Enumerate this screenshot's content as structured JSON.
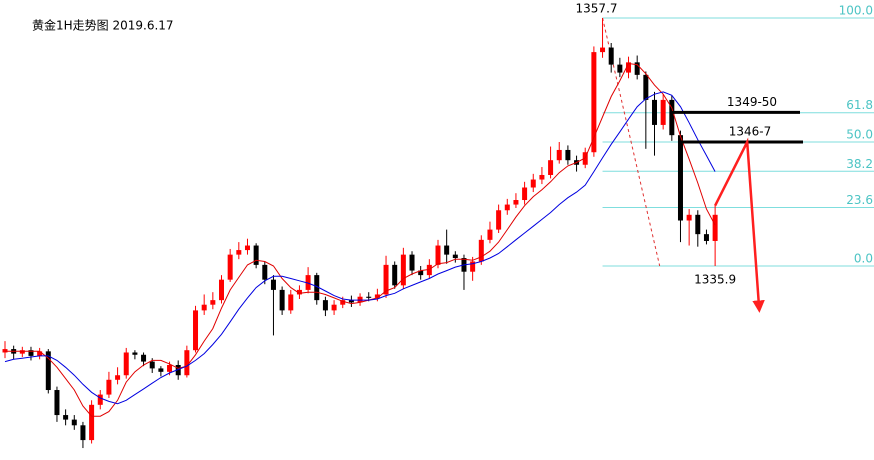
{
  "chart_data": {
    "type": "candlestick",
    "title": "黄金1H走势图  2019.6.17",
    "ylim": [
      1318.85,
      1359.28
    ],
    "up_color": "#ff0000",
    "down_color": "#000000",
    "open": [
      1328.3,
      1328.6,
      1328.2,
      1328.5,
      1328.0,
      1328.4,
      1325.0,
      1322.8,
      1322.4,
      1321.9,
      1320.6,
      1323.7,
      1324.6,
      1325.9,
      1326.3,
      1328.3,
      1328.1,
      1327.5,
      1326.9,
      1326.6,
      1327.2,
      1326.3,
      1328.5,
      1332.0,
      1332.5,
      1332.9,
      1334.7,
      1336.9,
      1337.3,
      1337.7,
      1336.0,
      1334.7,
      1333.8,
      1332.0,
      1333.4,
      1333.8,
      1335.1,
      1332.9,
      1332.0,
      1332.5,
      1332.9,
      1332.7,
      1333.2,
      1333.1,
      1333.4,
      1336.0,
      1334.2,
      1336.9,
      1335.5,
      1335.1,
      1336.0,
      1337.7,
      1336.9,
      1336.6,
      1335.4,
      1336.3,
      1338.2,
      1339.1,
      1340.8,
      1341.3,
      1341.7,
      1342.8,
      1343.5,
      1343.9,
      1345.2,
      1346.1,
      1345.2,
      1344.8,
      1345.9,
      1354.7,
      1355.1,
      1353.6,
      1352.9,
      1353.8,
      1352.7,
      1350.5,
      1348.3,
      1350.5,
      1347.4,
      1339.9,
      1340.4,
      1338.7,
      1338.1
    ],
    "high": [
      1329.3,
      1328.9,
      1328.8,
      1328.8,
      1328.7,
      1328.6,
      1325.3,
      1323.3,
      1322.8,
      1322.2,
      1324.1,
      1325.0,
      1326.6,
      1327.0,
      1328.7,
      1328.5,
      1328.3,
      1327.8,
      1327.1,
      1327.5,
      1327.6,
      1328.9,
      1332.4,
      1333.4,
      1333.6,
      1335.1,
      1337.4,
      1338.0,
      1338.3,
      1337.9,
      1336.3,
      1335.1,
      1334.1,
      1333.8,
      1334.2,
      1335.8,
      1335.3,
      1333.2,
      1332.9,
      1333.2,
      1333.3,
      1333.5,
      1333.6,
      1333.9,
      1336.8,
      1336.3,
      1337.5,
      1337.2,
      1335.9,
      1336.5,
      1338.2,
      1339.1,
      1337.2,
      1336.9,
      1336.7,
      1338.6,
      1339.8,
      1341.3,
      1341.8,
      1342.3,
      1343.3,
      1344.0,
      1344.6,
      1346.4,
      1346.8,
      1346.5,
      1345.6,
      1346.3,
      1355.2,
      1357.7,
      1355.5,
      1354.2,
      1354.3,
      1354.4,
      1353.0,
      1351.2,
      1351.0,
      1350.9,
      1347.8,
      1340.9,
      1340.8,
      1339.1,
      1341.2
    ],
    "low": [
      1327.8,
      1327.7,
      1327.9,
      1327.6,
      1327.7,
      1324.7,
      1322.2,
      1321.9,
      1321.5,
      1319.9,
      1320.3,
      1323.3,
      1324.3,
      1325.5,
      1326.0,
      1327.7,
      1327.1,
      1326.5,
      1326.2,
      1326.3,
      1325.9,
      1326.1,
      1328.3,
      1331.6,
      1332.1,
      1332.6,
      1334.5,
      1336.5,
      1336.9,
      1335.7,
      1334.3,
      1329.8,
      1331.6,
      1331.7,
      1333.0,
      1333.5,
      1332.5,
      1331.5,
      1331.6,
      1332.2,
      1332.3,
      1332.4,
      1332.8,
      1332.8,
      1333.1,
      1333.9,
      1333.9,
      1335.1,
      1334.7,
      1334.8,
      1335.7,
      1336.1,
      1336.2,
      1333.8,
      1334.6,
      1336.0,
      1337.9,
      1338.8,
      1340.4,
      1341.0,
      1341.3,
      1342.4,
      1343.1,
      1343.6,
      1344.9,
      1344.8,
      1344.2,
      1344.5,
      1345.5,
      1354.2,
      1352.9,
      1352.5,
      1352.4,
      1352.3,
      1346.2,
      1345.6,
      1347.9,
      1346.9,
      1338.0,
      1337.7,
      1337.6,
      1337.8,
      1335.9
    ],
    "close": [
      1328.6,
      1328.2,
      1328.5,
      1328.0,
      1328.4,
      1325.0,
      1322.8,
      1322.4,
      1321.9,
      1320.6,
      1323.7,
      1324.6,
      1325.9,
      1326.3,
      1328.3,
      1328.1,
      1327.5,
      1326.9,
      1326.6,
      1327.2,
      1326.3,
      1328.5,
      1332.0,
      1332.5,
      1332.9,
      1334.7,
      1336.9,
      1337.3,
      1337.7,
      1336.0,
      1334.7,
      1333.8,
      1332.0,
      1333.4,
      1333.8,
      1335.1,
      1332.9,
      1332.0,
      1332.5,
      1332.9,
      1332.7,
      1333.2,
      1333.1,
      1333.4,
      1336.0,
      1334.2,
      1336.9,
      1335.5,
      1335.1,
      1336.0,
      1337.7,
      1336.9,
      1336.6,
      1335.4,
      1336.3,
      1338.2,
      1339.1,
      1340.8,
      1341.3,
      1341.7,
      1342.8,
      1343.5,
      1343.9,
      1345.2,
      1346.1,
      1345.2,
      1344.8,
      1345.9,
      1354.7,
      1355.1,
      1353.6,
      1352.9,
      1353.8,
      1352.7,
      1350.5,
      1348.3,
      1350.5,
      1347.4,
      1339.9,
      1340.4,
      1338.7,
      1338.1,
      1340.4
    ],
    "series": [
      {
        "color": "#e00000",
        "values": [
          1328.4,
          1328.4,
          1328.4,
          1328.4,
          1328.4,
          1327.8,
          1327.0,
          1326.0,
          1325.0,
          1323.6,
          1322.7,
          1322.7,
          1323.1,
          1324.1,
          1325.7,
          1326.6,
          1327.2,
          1327.6,
          1327.6,
          1327.3,
          1326.9,
          1327.1,
          1328.1,
          1329.3,
          1330.4,
          1332.2,
          1333.8,
          1334.9,
          1336.0,
          1336.4,
          1336.3,
          1335.9,
          1334.8,
          1334.0,
          1333.5,
          1333.6,
          1333.6,
          1333.4,
          1333.1,
          1332.8,
          1332.6,
          1332.7,
          1332.9,
          1333.1,
          1333.7,
          1334.0,
          1334.8,
          1335.2,
          1335.5,
          1335.6,
          1336.1,
          1336.2,
          1336.5,
          1336.5,
          1336.4,
          1336.7,
          1337.2,
          1338.0,
          1339.1,
          1340.2,
          1341.2,
          1342.0,
          1342.6,
          1343.3,
          1344.1,
          1344.7,
          1345.0,
          1345.4,
          1347.2,
          1349.0,
          1350.8,
          1352.2,
          1353.7,
          1353.6,
          1352.8,
          1351.8,
          1351.0,
          1349.8,
          1347.3,
          1345.3,
          1343.2,
          1340.9,
          1339.5
        ]
      },
      {
        "color": "#0000e0",
        "values": [
          1327.5,
          1327.7,
          1327.8,
          1327.9,
          1328.0,
          1328.0,
          1327.6,
          1327.0,
          1326.3,
          1325.5,
          1324.8,
          1324.3,
          1324.0,
          1323.8,
          1324.1,
          1324.6,
          1325.1,
          1325.6,
          1326.1,
          1326.5,
          1326.8,
          1327.1,
          1327.6,
          1328.2,
          1329.0,
          1329.9,
          1331.0,
          1332.1,
          1333.1,
          1334.0,
          1334.6,
          1335.0,
          1335.0,
          1334.8,
          1334.6,
          1334.4,
          1334.1,
          1333.7,
          1333.3,
          1333.0,
          1332.9,
          1332.9,
          1332.9,
          1333.0,
          1333.3,
          1333.5,
          1333.9,
          1334.2,
          1334.5,
          1334.8,
          1335.2,
          1335.5,
          1335.8,
          1336.0,
          1336.1,
          1336.3,
          1336.6,
          1337.0,
          1337.6,
          1338.2,
          1338.8,
          1339.4,
          1340.0,
          1340.6,
          1341.3,
          1341.9,
          1342.4,
          1343.0,
          1344.2,
          1345.4,
          1346.6,
          1347.7,
          1348.8,
          1349.9,
          1350.6,
          1351.0,
          1351.2,
          1350.9,
          1349.9,
          1348.5,
          1347.0,
          1345.6,
          1344.2
        ]
      }
    ],
    "high_price": 1357.7,
    "low_price": 1335.9,
    "fib_anchor_x": [
      69,
      75.6
    ],
    "fib_levels": [
      {
        "value": 100,
        "label": "100.0"
      },
      61.8,
      {
        "value": 50,
        "label": "50.0"
      },
      38.2,
      23.6,
      {
        "value": 0,
        "label": "0.0"
      }
    ],
    "zones": [
      {
        "label": "1349-50",
        "price": 1349.4
      },
      {
        "label": "1346-7",
        "price": 1346.8
      }
    ],
    "projection": {
      "color": "#ff2020",
      "x": [
        82,
        85.7,
        87.1
      ],
      "values": [
        1341.2,
        1346.8,
        1332.0
      ]
    }
  }
}
